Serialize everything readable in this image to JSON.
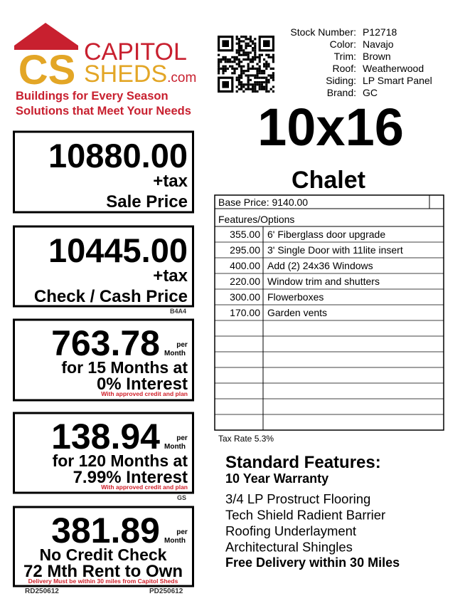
{
  "logo": {
    "monogram": "CS",
    "brand_top": "CAPITOL",
    "brand_bottom": "SHEDS",
    "domain": ".com",
    "tagline": [
      "Buildings for Every Season",
      "Solutions that Meet Your Needs"
    ]
  },
  "specs": [
    {
      "label": "Stock Number:",
      "value": "P12718"
    },
    {
      "label": "Color:",
      "value": "Navajo"
    },
    {
      "label": "Trim:",
      "value": "Brown"
    },
    {
      "label": "Roof:",
      "value": "Weatherwood"
    },
    {
      "label": "Siding:",
      "value": "LP Smart Panel"
    },
    {
      "label": "Brand:",
      "value": "GC"
    }
  ],
  "size": "10x16",
  "style": "Chalet",
  "prices": [
    {
      "amount": "10880.00",
      "tax": "+tax",
      "label": "Sale Price"
    },
    {
      "amount": "10445.00",
      "tax": "+tax",
      "label": "Check / Cash Price",
      "code": "B4A4"
    },
    {
      "amount": "763.78",
      "per": "per",
      "month": "Month",
      "line1": "for 15 Months at",
      "line2": "0% Interest",
      "note": "With approved credit and plan"
    },
    {
      "amount": "138.94",
      "per": "per",
      "month": "Month",
      "line1": "for 120 Months at",
      "line2": "7.99% Interest",
      "note": "With approved credit and plan",
      "code": "GS"
    },
    {
      "amount": "381.89",
      "per": "per",
      "month": "Month",
      "line1": "No Credit Check",
      "line2": "72 Mth Rent to Own",
      "note": "Delivery Must be within 30 miles from Capitol Sheds",
      "codes": [
        "RD250612",
        "PD250612"
      ]
    }
  ],
  "options": {
    "base_price": "Base Price: 9140.00",
    "header": "Features/Options",
    "rows": [
      [
        "355.00",
        "6' Fiberglass door upgrade"
      ],
      [
        "295.00",
        "3' Single Door with 11lite insert"
      ],
      [
        "400.00",
        "Add (2) 24x36 Windows"
      ],
      [
        "220.00",
        "Window trim and shutters"
      ],
      [
        "300.00",
        "Flowerboxes"
      ],
      [
        "170.00",
        "Garden vents"
      ]
    ],
    "tax_rate": "Tax Rate 5.3%"
  },
  "standard_features": {
    "title": "Standard Features:",
    "warranty": "10 Year Warranty",
    "items": [
      "3/4 LP Prostruct Flooring",
      "Tech Shield Radient Barrier",
      "Roofing Underlayment",
      "Architectural Shingles"
    ],
    "delivery": "Free Delivery within 30 Miles"
  }
}
